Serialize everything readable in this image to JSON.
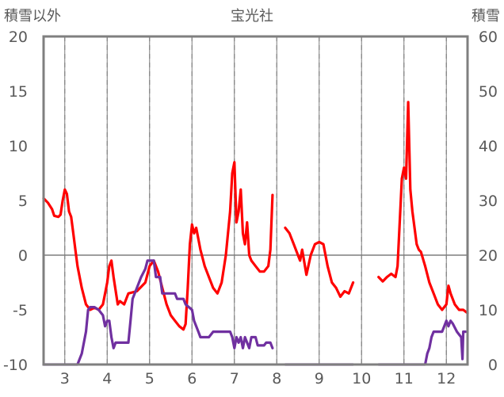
{
  "chart_data": {
    "type": "line",
    "title": "宝光社",
    "y_left_label": "積雪以外",
    "y_right_label": "積雪",
    "x": {
      "range": [
        2.5,
        12.5
      ],
      "ticks": [
        3,
        4,
        5,
        6,
        7,
        8,
        9,
        10,
        11,
        12
      ]
    },
    "y_left": {
      "range": [
        -10,
        20
      ],
      "ticks": [
        -10,
        -5,
        0,
        5,
        10,
        15,
        20
      ]
    },
    "y_right": {
      "range": [
        0,
        60
      ],
      "ticks": [
        0,
        10,
        20,
        30,
        40,
        50,
        60
      ]
    },
    "grid": {
      "vertical_dashed": true,
      "vertical_solid_between": true,
      "horizontal_zero_line": true
    },
    "series": [
      {
        "axis": "left",
        "color": "#ff0000",
        "segments": [
          [
            [
              2.5,
              5.2
            ],
            [
              2.6,
              4.8
            ],
            [
              2.7,
              4.2
            ],
            [
              2.75,
              3.6
            ],
            [
              2.85,
              3.5
            ],
            [
              2.9,
              3.7
            ],
            [
              2.95,
              5.0
            ],
            [
              3.0,
              6.0
            ],
            [
              3.05,
              5.6
            ],
            [
              3.1,
              4.0
            ],
            [
              3.15,
              3.5
            ],
            [
              3.2,
              2.0
            ],
            [
              3.25,
              0.5
            ],
            [
              3.3,
              -1.0
            ],
            [
              3.4,
              -3.0
            ],
            [
              3.5,
              -4.5
            ],
            [
              3.6,
              -5.0
            ],
            [
              3.7,
              -4.8
            ],
            [
              3.8,
              -5.0
            ],
            [
              3.9,
              -4.5
            ],
            [
              4.0,
              -2.5
            ],
            [
              4.05,
              -1.0
            ],
            [
              4.1,
              -0.5
            ],
            [
              4.15,
              -2.0
            ],
            [
              4.25,
              -4.5
            ],
            [
              4.3,
              -4.2
            ],
            [
              4.4,
              -4.5
            ],
            [
              4.5,
              -3.5
            ],
            [
              4.7,
              -3.3
            ],
            [
              4.9,
              -2.5
            ],
            [
              5.0,
              -1.0
            ],
            [
              5.1,
              -0.5
            ],
            [
              5.2,
              -1.5
            ],
            [
              5.3,
              -3.0
            ],
            [
              5.4,
              -4.5
            ],
            [
              5.5,
              -5.5
            ],
            [
              5.6,
              -6.0
            ],
            [
              5.7,
              -6.5
            ],
            [
              5.8,
              -6.8
            ],
            [
              5.85,
              -6.3
            ],
            [
              5.9,
              -3.0
            ],
            [
              5.95,
              1.0
            ],
            [
              6.0,
              2.8
            ],
            [
              6.05,
              2.0
            ],
            [
              6.1,
              2.5
            ],
            [
              6.2,
              0.5
            ],
            [
              6.3,
              -1.0
            ],
            [
              6.4,
              -2.0
            ],
            [
              6.5,
              -3.0
            ],
            [
              6.6,
              -3.5
            ],
            [
              6.7,
              -2.5
            ],
            [
              6.8,
              0.0
            ],
            [
              6.9,
              4.0
            ],
            [
              6.95,
              7.5
            ],
            [
              7.0,
              8.5
            ],
            [
              7.05,
              3.0
            ],
            [
              7.1,
              4.0
            ],
            [
              7.15,
              6.0
            ],
            [
              7.2,
              2.0
            ],
            [
              7.25,
              1.0
            ],
            [
              7.3,
              3.0
            ],
            [
              7.35,
              0.0
            ],
            [
              7.4,
              -0.5
            ],
            [
              7.5,
              -1.0
            ],
            [
              7.6,
              -1.5
            ],
            [
              7.7,
              -1.5
            ],
            [
              7.8,
              -1.0
            ],
            [
              7.85,
              0.5
            ],
            [
              7.9,
              5.5
            ]
          ],
          [
            [
              8.2,
              2.5
            ],
            [
              8.3,
              2.0
            ],
            [
              8.4,
              1.0
            ],
            [
              8.5,
              0.0
            ],
            [
              8.55,
              -0.5
            ],
            [
              8.6,
              0.5
            ],
            [
              8.7,
              -1.8
            ],
            [
              8.8,
              0.0
            ],
            [
              8.9,
              1.0
            ],
            [
              9.0,
              1.2
            ],
            [
              9.1,
              1.0
            ],
            [
              9.2,
              -1.0
            ],
            [
              9.3,
              -2.5
            ],
            [
              9.4,
              -3.0
            ],
            [
              9.5,
              -3.8
            ],
            [
              9.6,
              -3.3
            ],
            [
              9.7,
              -3.5
            ],
            [
              9.8,
              -2.5
            ]
          ],
          [
            [
              10.4,
              -2.0
            ],
            [
              10.5,
              -2.4
            ],
            [
              10.6,
              -2.0
            ],
            [
              10.7,
              -1.7
            ],
            [
              10.8,
              -2.0
            ],
            [
              10.85,
              -1.0
            ],
            [
              10.9,
              3.0
            ],
            [
              10.95,
              7.0
            ],
            [
              11.0,
              8.0
            ],
            [
              11.05,
              7.0
            ],
            [
              11.1,
              14.0
            ],
            [
              11.15,
              6.0
            ],
            [
              11.2,
              4.0
            ],
            [
              11.3,
              1.0
            ],
            [
              11.35,
              0.5
            ],
            [
              11.4,
              0.3
            ],
            [
              11.5,
              -1.0
            ],
            [
              11.6,
              -2.5
            ],
            [
              11.7,
              -3.5
            ],
            [
              11.8,
              -4.5
            ],
            [
              11.9,
              -5.0
            ],
            [
              12.0,
              -4.5
            ],
            [
              12.05,
              -2.8
            ],
            [
              12.1,
              -3.5
            ],
            [
              12.2,
              -4.5
            ],
            [
              12.3,
              -5.0
            ],
            [
              12.4,
              -5.0
            ],
            [
              12.5,
              -5.3
            ]
          ]
        ]
      },
      {
        "axis": "right",
        "color": "#7030a0",
        "segments": [
          [
            [
              2.5,
              0
            ],
            [
              3.3,
              0
            ],
            [
              3.4,
              2.0
            ],
            [
              3.5,
              6.0
            ],
            [
              3.55,
              10.0
            ],
            [
              3.6,
              10.5
            ],
            [
              3.7,
              10.5
            ],
            [
              3.8,
              10.0
            ],
            [
              3.9,
              9.0
            ],
            [
              3.95,
              7.0
            ],
            [
              4.0,
              8.0
            ],
            [
              4.05,
              8.0
            ],
            [
              4.1,
              5.0
            ],
            [
              4.15,
              3.0
            ],
            [
              4.2,
              4.0
            ],
            [
              4.5,
              4.0
            ],
            [
              4.55,
              8.0
            ],
            [
              4.6,
              12.0
            ],
            [
              4.7,
              14.0
            ],
            [
              4.8,
              16.0
            ],
            [
              4.9,
              17.5
            ],
            [
              4.95,
              19.0
            ],
            [
              5.1,
              19.0
            ],
            [
              5.15,
              16.0
            ],
            [
              5.25,
              16.0
            ],
            [
              5.3,
              13.0
            ],
            [
              5.6,
              13.0
            ],
            [
              5.65,
              12.0
            ],
            [
              5.8,
              12.0
            ],
            [
              5.85,
              11.0
            ],
            [
              6.0,
              10.0
            ],
            [
              6.05,
              8.0
            ],
            [
              6.1,
              7.0
            ],
            [
              6.15,
              6.0
            ],
            [
              6.2,
              5.0
            ],
            [
              6.4,
              5.0
            ],
            [
              6.5,
              6.0
            ],
            [
              6.9,
              6.0
            ],
            [
              6.95,
              5.0
            ],
            [
              7.0,
              3.0
            ],
            [
              7.05,
              5.0
            ],
            [
              7.1,
              4.0
            ],
            [
              7.15,
              5.0
            ],
            [
              7.2,
              3.0
            ],
            [
              7.25,
              5.0
            ],
            [
              7.35,
              3.0
            ],
            [
              7.4,
              5.0
            ],
            [
              7.5,
              5.0
            ],
            [
              7.55,
              3.5
            ],
            [
              7.7,
              3.5
            ],
            [
              7.75,
              4.0
            ],
            [
              7.85,
              4.0
            ],
            [
              7.9,
              3.0
            ]
          ],
          [
            [
              8.2,
              0
            ],
            [
              9.8,
              0
            ]
          ],
          [
            [
              10.4,
              0
            ],
            [
              11.5,
              0
            ],
            [
              11.55,
              2.0
            ],
            [
              11.6,
              3.0
            ],
            [
              11.65,
              5.0
            ],
            [
              11.7,
              6.0
            ],
            [
              11.9,
              6.0
            ],
            [
              11.95,
              7.0
            ],
            [
              12.0,
              8.0
            ],
            [
              12.05,
              7.0
            ],
            [
              12.1,
              8.0
            ],
            [
              12.15,
              7.5
            ],
            [
              12.25,
              6.0
            ],
            [
              12.3,
              5.5
            ],
            [
              12.35,
              5.0
            ],
            [
              12.38,
              1.0
            ],
            [
              12.4,
              6.0
            ],
            [
              12.45,
              6.0
            ]
          ]
        ]
      }
    ]
  }
}
